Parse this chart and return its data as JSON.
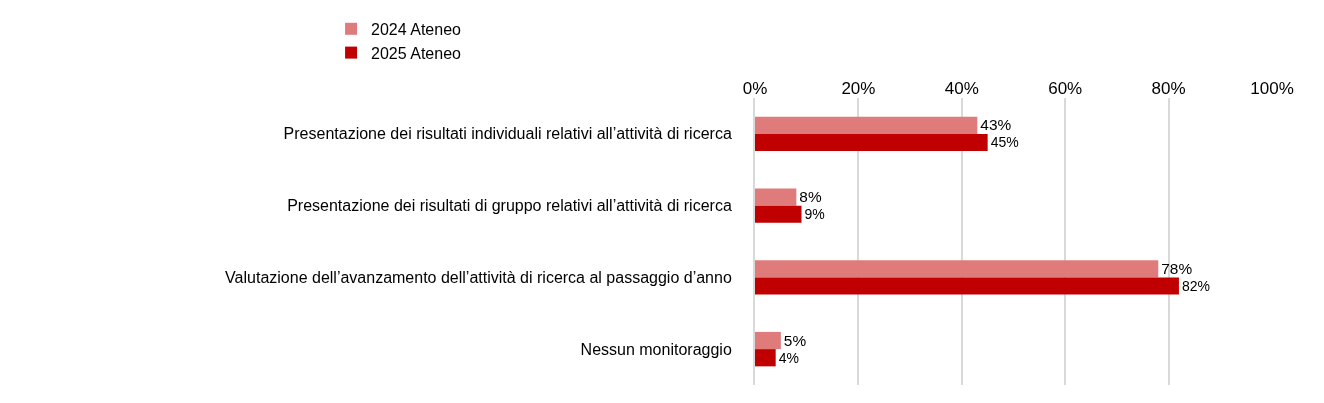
{
  "chart_data": {
    "type": "bar",
    "orientation": "horizontal",
    "categories": [
      "Presentazione dei risultati individuali relativi all’attività di ricerca",
      "Presentazione dei risultati di gruppo relativi all’attività di ricerca",
      "Valutazione dell’avanzamento dell’attività di ricerca al passaggio d’anno",
      "Nessun monitoraggio"
    ],
    "series": [
      {
        "name": "2024 Ateneo",
        "color": "#e07b7b",
        "values": [
          43,
          8,
          78,
          5
        ],
        "value_labels": [
          "43%",
          "8%",
          "78%",
          "5%"
        ]
      },
      {
        "name": "2025 Ateneo",
        "color": "#c00000",
        "values": [
          45,
          9,
          82,
          4
        ],
        "value_labels": [
          "45%",
          "9%",
          "82%",
          "4%"
        ]
      }
    ],
    "xlim": [
      0,
      100
    ],
    "xticks": [
      {
        "value": 0,
        "label": "0%"
      },
      {
        "value": 20,
        "label": "20%"
      },
      {
        "value": 40,
        "label": "40%"
      },
      {
        "value": 60,
        "label": "60%"
      },
      {
        "value": 80,
        "label": "80%"
      },
      {
        "value": 100,
        "label": "100%"
      }
    ],
    "grid": "x",
    "legend": "top left"
  }
}
